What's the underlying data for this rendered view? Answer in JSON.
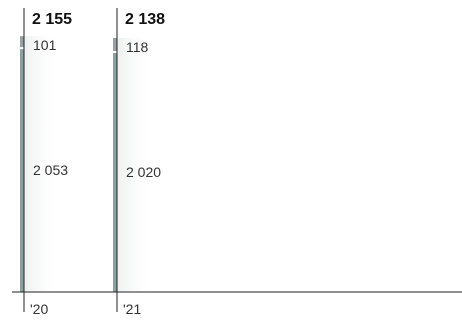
{
  "chart_data": {
    "type": "bar",
    "stacked": true,
    "categories": [
      "'20",
      "'21"
    ],
    "totals": [
      "2 155",
      "2 138"
    ],
    "series": [
      {
        "values": [
          2053,
          2020
        ],
        "labels": [
          "2 053",
          "2 020"
        ],
        "color": "#8aa1a1"
      },
      {
        "values": [
          101,
          118
        ],
        "labels": [
          "101",
          "118"
        ],
        "color": "#9aa0a6"
      }
    ],
    "total_values": [
      2155,
      2138
    ],
    "ylim": [
      0,
      2155
    ],
    "grid": false,
    "legend": "none"
  }
}
